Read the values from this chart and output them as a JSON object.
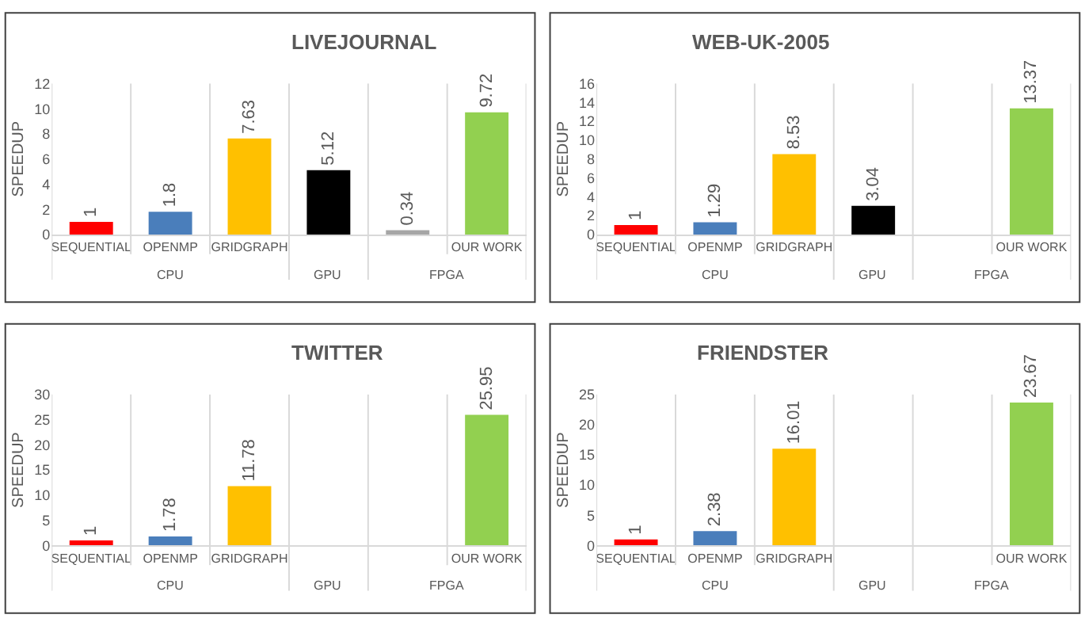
{
  "chart_data": [
    {
      "type": "bar",
      "title": "LIVEJOURNAL",
      "ylabel": "SPEEDUP",
      "categories": [
        "SEQUENTIAL",
        "OPENMP",
        "GRIDGRAPH",
        null,
        null,
        "OUR WORK"
      ],
      "values": [
        1,
        1.8,
        7.63,
        5.12,
        0.34,
        9.72
      ],
      "colors": [
        "#ff0000",
        "#4a7ebb",
        "#ffc000",
        "#000000",
        "#a6a6a6",
        "#92d050"
      ],
      "ylim": [
        0,
        12
      ],
      "yticks": [
        0,
        2,
        4,
        6,
        8,
        10,
        12
      ],
      "data_labels": true,
      "annotations": [
        "CPU",
        "GPU",
        "FPGA"
      ]
    },
    {
      "type": "bar",
      "title": "WEB-UK-2005",
      "ylabel": "SPEEDUP",
      "categories": [
        "SEQUENTIAL",
        "OPENMP",
        "GRIDGRAPH",
        null,
        null,
        "OUR WORK"
      ],
      "values": [
        1,
        1.29,
        8.53,
        3.04,
        null,
        13.37
      ],
      "colors": [
        "#ff0000",
        "#4a7ebb",
        "#ffc000",
        "#000000",
        "#a6a6a6",
        "#92d050"
      ],
      "ylim": [
        0,
        16
      ],
      "yticks": [
        0,
        2,
        4,
        6,
        8,
        10,
        12,
        14,
        16
      ],
      "data_labels": true,
      "annotations": [
        "CPU",
        "GPU",
        "FPGA"
      ]
    },
    {
      "type": "bar",
      "title": "TWITTER",
      "ylabel": "SPEEDUP",
      "categories": [
        "SEQUENTIAL",
        "OPENMP",
        "GRIDGRAPH",
        null,
        null,
        "OUR WORK"
      ],
      "values": [
        1,
        1.78,
        11.78,
        null,
        null,
        25.95
      ],
      "colors": [
        "#ff0000",
        "#4a7ebb",
        "#ffc000",
        "#000000",
        "#a6a6a6",
        "#92d050"
      ],
      "ylim": [
        0,
        30
      ],
      "yticks": [
        0,
        5,
        10,
        15,
        20,
        25,
        30
      ],
      "data_labels": true,
      "annotations": [
        "CPU",
        "GPU",
        "FPGA"
      ]
    },
    {
      "type": "bar",
      "title": "FRIENDSTER",
      "ylabel": "SPEEDUP",
      "categories": [
        "SEQUENTIAL",
        "OPENMP",
        "GRIDGRAPH",
        null,
        null,
        "OUR WORK"
      ],
      "values": [
        1,
        2.38,
        16.01,
        null,
        null,
        23.67
      ],
      "colors": [
        "#ff0000",
        "#4a7ebb",
        "#ffc000",
        "#000000",
        "#a6a6a6",
        "#92d050"
      ],
      "ylim": [
        0,
        25
      ],
      "yticks": [
        0,
        5,
        10,
        15,
        20,
        25
      ],
      "data_labels": true,
      "annotations": [
        "CPU",
        "GPU",
        "FPGA"
      ]
    }
  ]
}
